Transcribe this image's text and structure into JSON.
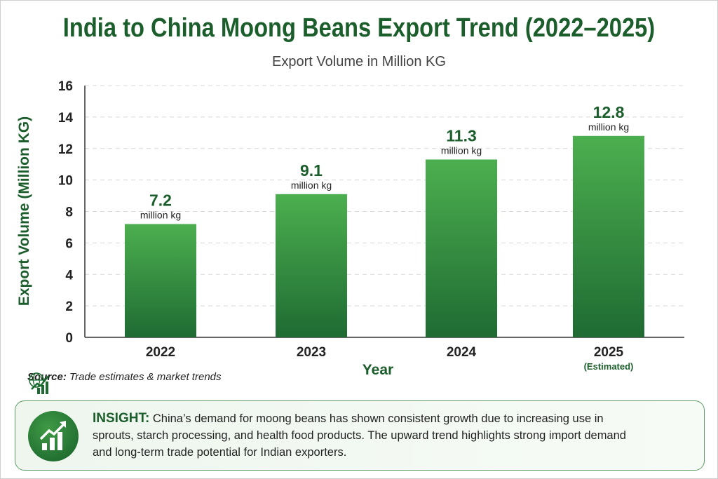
{
  "chart_data": {
    "type": "bar",
    "title": "India to China Moong Beans Export Trend (2022–2025)",
    "subtitle": "Export Volume in Million KG",
    "xlabel": "Year",
    "ylabel": "Export Volume (Million KG)",
    "ylim": [
      0,
      16
    ],
    "yticks": [
      0,
      2,
      4,
      6,
      8,
      10,
      12,
      14,
      16
    ],
    "grid": true,
    "categories": [
      "2022",
      "2023",
      "2024",
      "2025"
    ],
    "category_notes": [
      "",
      "",
      "",
      "(Estimated)"
    ],
    "values": [
      7.2,
      9.1,
      11.3,
      12.8
    ],
    "value_labels": [
      "7.2",
      "9.1",
      "11.3",
      "12.8"
    ],
    "unit_label": "million kg",
    "colors": {
      "bar_top": "#4caf4f",
      "bar_bottom": "#1f6b33",
      "title": "#1b5e2b"
    }
  },
  "source": {
    "label": "Source:",
    "text": "Trade estimates & market trends",
    "icon": "globe-growth-chart-icon"
  },
  "insight": {
    "label": "INSIGHT:",
    "text": "China’s demand for moong beans has shown consistent growth due to increasing use in sprouts, starch processing, and health food products. The upward trend highlights strong import demand and long-term trade potential for Indian exporters.",
    "icon": "growth-chart-icon"
  }
}
